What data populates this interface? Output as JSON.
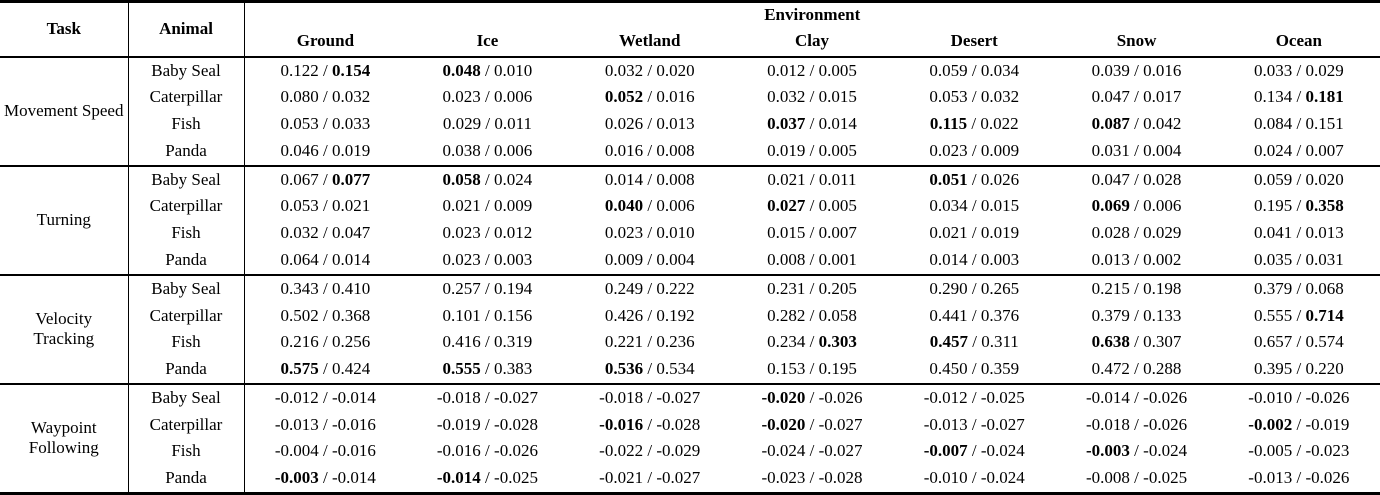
{
  "page": {
    "background": "#ffffff",
    "text_color": "#000000",
    "rule_color": "#000000"
  },
  "table": {
    "headers": {
      "task": "Task",
      "animal": "Animal",
      "environment": "Environment"
    },
    "environments": [
      "Ground",
      "Ice",
      "Wetland",
      "Clay",
      "Desert",
      "Snow",
      "Ocean"
    ],
    "separator": "/",
    "task_groups": [
      {
        "task": "Movement Speed",
        "rows": [
          {
            "animal": "Baby Seal",
            "cells": [
              [
                "0.122",
                "0.154",
                2
              ],
              [
                "0.048",
                "0.010",
                1
              ],
              [
                "0.032",
                "0.020",
                0
              ],
              [
                "0.012",
                "0.005",
                0
              ],
              [
                "0.059",
                "0.034",
                0
              ],
              [
                "0.039",
                "0.016",
                0
              ],
              [
                "0.033",
                "0.029",
                0
              ]
            ]
          },
          {
            "animal": "Caterpillar",
            "cells": [
              [
                "0.080",
                "0.032",
                0
              ],
              [
                "0.023",
                "0.006",
                0
              ],
              [
                "0.052",
                "0.016",
                1
              ],
              [
                "0.032",
                "0.015",
                0
              ],
              [
                "0.053",
                "0.032",
                0
              ],
              [
                "0.047",
                "0.017",
                0
              ],
              [
                "0.134",
                "0.181",
                2
              ]
            ]
          },
          {
            "animal": "Fish",
            "cells": [
              [
                "0.053",
                "0.033",
                0
              ],
              [
                "0.029",
                "0.011",
                0
              ],
              [
                "0.026",
                "0.013",
                0
              ],
              [
                "0.037",
                "0.014",
                1
              ],
              [
                "0.115",
                "0.022",
                1
              ],
              [
                "0.087",
                "0.042",
                1
              ],
              [
                "0.084",
                "0.151",
                0
              ]
            ]
          },
          {
            "animal": "Panda",
            "cells": [
              [
                "0.046",
                "0.019",
                0
              ],
              [
                "0.038",
                "0.006",
                0
              ],
              [
                "0.016",
                "0.008",
                0
              ],
              [
                "0.019",
                "0.005",
                0
              ],
              [
                "0.023",
                "0.009",
                0
              ],
              [
                "0.031",
                "0.004",
                0
              ],
              [
                "0.024",
                "0.007",
                0
              ]
            ]
          }
        ]
      },
      {
        "task": "Turning",
        "rows": [
          {
            "animal": "Baby Seal",
            "cells": [
              [
                "0.067",
                "0.077",
                2
              ],
              [
                "0.058",
                "0.024",
                1
              ],
              [
                "0.014",
                "0.008",
                0
              ],
              [
                "0.021",
                "0.011",
                0
              ],
              [
                "0.051",
                "0.026",
                1
              ],
              [
                "0.047",
                "0.028",
                0
              ],
              [
                "0.059",
                "0.020",
                0
              ]
            ]
          },
          {
            "animal": "Caterpillar",
            "cells": [
              [
                "0.053",
                "0.021",
                0
              ],
              [
                "0.021",
                "0.009",
                0
              ],
              [
                "0.040",
                "0.006",
                1
              ],
              [
                "0.027",
                "0.005",
                1
              ],
              [
                "0.034",
                "0.015",
                0
              ],
              [
                "0.069",
                "0.006",
                1
              ],
              [
                "0.195",
                "0.358",
                2
              ]
            ]
          },
          {
            "animal": "Fish",
            "cells": [
              [
                "0.032",
                "0.047",
                0
              ],
              [
                "0.023",
                "0.012",
                0
              ],
              [
                "0.023",
                "0.010",
                0
              ],
              [
                "0.015",
                "0.007",
                0
              ],
              [
                "0.021",
                "0.019",
                0
              ],
              [
                "0.028",
                "0.029",
                0
              ],
              [
                "0.041",
                "0.013",
                0
              ]
            ]
          },
          {
            "animal": "Panda",
            "cells": [
              [
                "0.064",
                "0.014",
                0
              ],
              [
                "0.023",
                "0.003",
                0
              ],
              [
                "0.009",
                "0.004",
                0
              ],
              [
                "0.008",
                "0.001",
                0
              ],
              [
                "0.014",
                "0.003",
                0
              ],
              [
                "0.013",
                "0.002",
                0
              ],
              [
                "0.035",
                "0.031",
                0
              ]
            ]
          }
        ]
      },
      {
        "task": "Velocity Tracking",
        "rows": [
          {
            "animal": "Baby Seal",
            "cells": [
              [
                "0.343",
                "0.410",
                0
              ],
              [
                "0.257",
                "0.194",
                0
              ],
              [
                "0.249",
                "0.222",
                0
              ],
              [
                "0.231",
                "0.205",
                0
              ],
              [
                "0.290",
                "0.265",
                0
              ],
              [
                "0.215",
                "0.198",
                0
              ],
              [
                "0.379",
                "0.068",
                0
              ]
            ]
          },
          {
            "animal": "Caterpillar",
            "cells": [
              [
                "0.502",
                "0.368",
                0
              ],
              [
                "0.101",
                "0.156",
                0
              ],
              [
                "0.426",
                "0.192",
                0
              ],
              [
                "0.282",
                "0.058",
                0
              ],
              [
                "0.441",
                "0.376",
                0
              ],
              [
                "0.379",
                "0.133",
                0
              ],
              [
                "0.555",
                "0.714",
                2
              ]
            ]
          },
          {
            "animal": "Fish",
            "cells": [
              [
                "0.216",
                "0.256",
                0
              ],
              [
                "0.416",
                "0.319",
                0
              ],
              [
                "0.221",
                "0.236",
                0
              ],
              [
                "0.234",
                "0.303",
                2
              ],
              [
                "0.457",
                "0.311",
                1
              ],
              [
                "0.638",
                "0.307",
                1
              ],
              [
                "0.657",
                "0.574",
                0
              ]
            ]
          },
          {
            "animal": "Panda",
            "cells": [
              [
                "0.575",
                "0.424",
                1
              ],
              [
                "0.555",
                "0.383",
                1
              ],
              [
                "0.536",
                "0.534",
                1
              ],
              [
                "0.153",
                "0.195",
                0
              ],
              [
                "0.450",
                "0.359",
                0
              ],
              [
                "0.472",
                "0.288",
                0
              ],
              [
                "0.395",
                "0.220",
                0
              ]
            ]
          }
        ]
      },
      {
        "task": "Waypoint Following",
        "rows": [
          {
            "animal": "Baby Seal",
            "cells": [
              [
                "-0.012",
                "-0.014",
                0
              ],
              [
                "-0.018",
                "-0.027",
                0
              ],
              [
                "-0.018",
                "-0.027",
                0
              ],
              [
                "-0.020",
                "-0.026",
                1
              ],
              [
                "-0.012",
                "-0.025",
                0
              ],
              [
                "-0.014",
                "-0.026",
                0
              ],
              [
                "-0.010",
                "-0.026",
                0
              ]
            ]
          },
          {
            "animal": "Caterpillar",
            "cells": [
              [
                "-0.013",
                "-0.016",
                0
              ],
              [
                "-0.019",
                "-0.028",
                0
              ],
              [
                "-0.016",
                "-0.028",
                1
              ],
              [
                "-0.020",
                "-0.027",
                1
              ],
              [
                "-0.013",
                "-0.027",
                0
              ],
              [
                "-0.018",
                "-0.026",
                0
              ],
              [
                "-0.002",
                "-0.019",
                1
              ]
            ]
          },
          {
            "animal": "Fish",
            "cells": [
              [
                "-0.004",
                "-0.016",
                0
              ],
              [
                "-0.016",
                "-0.026",
                0
              ],
              [
                "-0.022",
                "-0.029",
                0
              ],
              [
                "-0.024",
                "-0.027",
                0
              ],
              [
                "-0.007",
                "-0.024",
                1
              ],
              [
                "-0.003",
                "-0.024",
                1
              ],
              [
                "-0.005",
                "-0.023",
                0
              ]
            ]
          },
          {
            "animal": "Panda",
            "cells": [
              [
                "-0.003",
                "-0.014",
                1
              ],
              [
                "-0.014",
                "-0.025",
                1
              ],
              [
                "-0.021",
                "-0.027",
                0
              ],
              [
                "-0.023",
                "-0.028",
                0
              ],
              [
                "-0.010",
                "-0.024",
                0
              ],
              [
                "-0.008",
                "-0.025",
                0
              ],
              [
                "-0.013",
                "-0.026",
                0
              ]
            ]
          }
        ]
      }
    ]
  }
}
